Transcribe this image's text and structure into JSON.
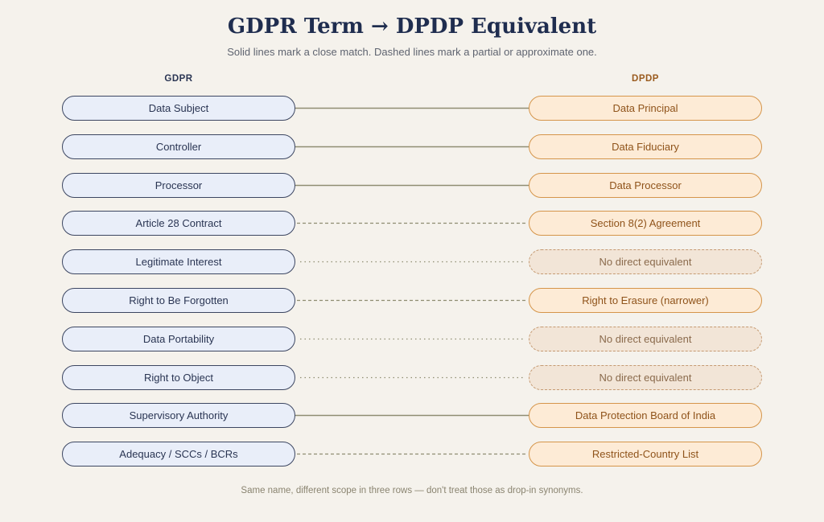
{
  "title": "GDPR Term → DPDP Equivalent",
  "subtitle": "Solid lines mark a close match. Dashed lines mark a partial or approximate one.",
  "left_heading": "GDPR",
  "right_heading": "DPDP",
  "colors": {
    "left_fill": "#e9eef9",
    "left_border": "#3c4661",
    "right_fill": "#fdebd6",
    "right_border": "#d5954a",
    "line": "#8f8d72",
    "background": "#f5f2ec"
  },
  "rows": [
    {
      "gdpr": "Data Subject",
      "dpdp": "Data Principal",
      "match": "solid"
    },
    {
      "gdpr": "Controller",
      "dpdp": "Data Fiduciary",
      "match": "solid"
    },
    {
      "gdpr": "Processor",
      "dpdp": "Data Processor",
      "match": "solid"
    },
    {
      "gdpr": "Article 28 Contract",
      "dpdp": "Section 8(2) Agreement",
      "match": "dashed"
    },
    {
      "gdpr": "Legitimate Interest",
      "dpdp": "No direct equivalent",
      "match": "none"
    },
    {
      "gdpr": "Right to Be Forgotten",
      "dpdp": "Right to Erasure (narrower)",
      "match": "dashed"
    },
    {
      "gdpr": "Data Portability",
      "dpdp": "No direct equivalent",
      "match": "none"
    },
    {
      "gdpr": "Right to Object",
      "dpdp": "No direct equivalent",
      "match": "none"
    },
    {
      "gdpr": "Supervisory Authority",
      "dpdp": "Data Protection Board of India",
      "match": "solid"
    },
    {
      "gdpr": "Adequacy / SCCs / BCRs",
      "dpdp": "Restricted-Country List",
      "match": "dashed"
    }
  ],
  "footer": "Same name, different scope in three rows — don't treat those as drop-in synonyms."
}
